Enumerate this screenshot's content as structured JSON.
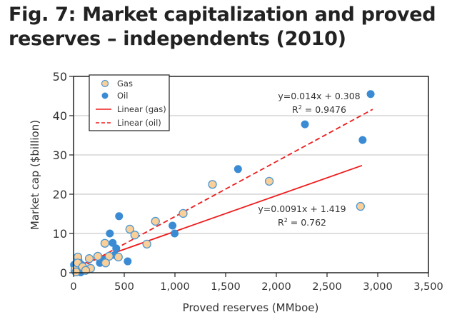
{
  "chart_data": {
    "type": "scatter",
    "title_line1": "Fig. 7: Market capitalization and proved",
    "title_line2": "reserves – independents (2010)",
    "xlabel": "Proved reserves (MMboe)",
    "ylabel": "Market cap ($billion)",
    "xlim": [
      0,
      3500
    ],
    "ylim": [
      0,
      50
    ],
    "xticks": [
      0,
      500,
      1000,
      1500,
      2000,
      2500,
      3000,
      3500
    ],
    "xtick_labels": [
      "0",
      "500",
      "1,000",
      "1,500",
      "2,000",
      "2,500",
      "3,000",
      "3,500"
    ],
    "yticks": [
      0,
      10,
      20,
      30,
      40,
      50
    ],
    "ytick_labels": [
      "0",
      "10",
      "20",
      "30",
      "40",
      "50"
    ],
    "grid": "horizontal",
    "legend_position": "top-left",
    "legend": [
      "Gas",
      "Oil",
      "Linear (gas)",
      "Linear (oil)"
    ],
    "colors": {
      "gas_fill": "#fbcf98",
      "gas_edge": "#4a97d4",
      "oil": "#3a8bd3",
      "trend": "#ee1c1c",
      "grid": "#cccccc"
    },
    "series": [
      {
        "name": "Gas",
        "points": [
          [
            1930,
            23.3
          ],
          [
            2830,
            16.9
          ],
          [
            1370,
            22.5
          ],
          [
            1081,
            15.1
          ],
          [
            808,
            13.1
          ],
          [
            555,
            11.1
          ],
          [
            604,
            9.6
          ],
          [
            309,
            7.5
          ],
          [
            723,
            7.3
          ],
          [
            442,
            4.0
          ],
          [
            351,
            4.2
          ],
          [
            316,
            2.5
          ],
          [
            239,
            4.2
          ],
          [
            155,
            3.6
          ],
          [
            168,
            1.1
          ],
          [
            42,
            4.0
          ],
          [
            15,
            0.8
          ],
          [
            40,
            2.5
          ],
          [
            90,
            1.5
          ],
          [
            25,
            0.2
          ],
          [
            120,
            0.6
          ]
        ]
      },
      {
        "name": "Oil",
        "points": [
          [
            2930,
            45.5
          ],
          [
            2282,
            37.8
          ],
          [
            2851,
            33.8
          ],
          [
            1622,
            26.4
          ],
          [
            976,
            12.0
          ],
          [
            997,
            10.0
          ],
          [
            449,
            14.4
          ],
          [
            358,
            10.0
          ],
          [
            386,
            7.6
          ],
          [
            421,
            6.2
          ],
          [
            407,
            4.5
          ],
          [
            534,
            2.9
          ],
          [
            295,
            3.3
          ],
          [
            260,
            2.5
          ],
          [
            49,
            3.1
          ],
          [
            10,
            0.5
          ],
          [
            20,
            1.0
          ],
          [
            30,
            0.3
          ],
          [
            50,
            1.5
          ],
          [
            80,
            2.0
          ],
          [
            100,
            1.0
          ],
          [
            5,
            2.0
          ],
          [
            60,
            0.5
          ],
          [
            70,
            0.1
          ]
        ]
      }
    ],
    "trendlines": [
      {
        "name": "Linear (gas)",
        "slope": 0.0091,
        "intercept": 1.419,
        "x_range": [
          0,
          2845
        ],
        "style": "solid",
        "equation": "y=0.0091x + 1.419",
        "r2_label": "R",
        "r2_sup": "2",
        "r2_value": " = 0.762"
      },
      {
        "name": "Linear (oil)",
        "slope": 0.014,
        "intercept": 0.308,
        "x_range": [
          0,
          2950
        ],
        "style": "dashed",
        "equation": "y=0.014x + 0.308",
        "r2_label": "R",
        "r2_sup": "2",
        "r2_value": " = 0.9476"
      }
    ]
  }
}
